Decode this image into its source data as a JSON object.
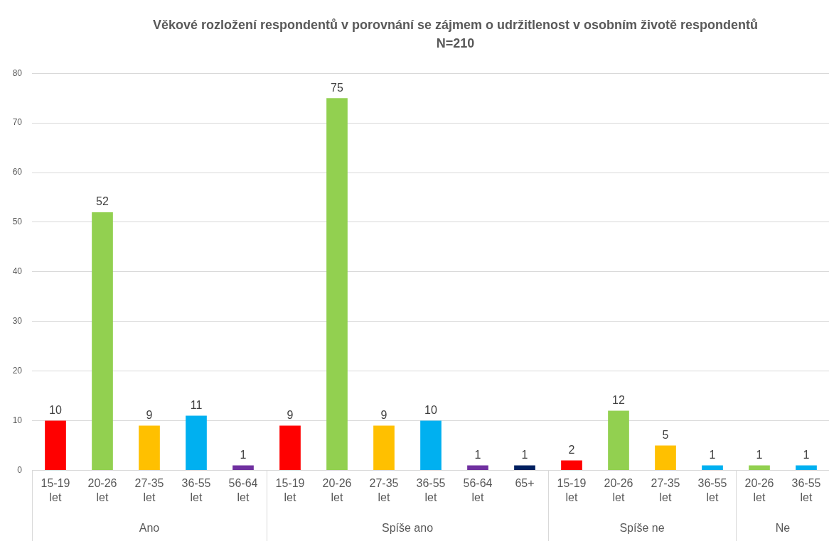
{
  "chart_data": [
    {
      "type": "bar",
      "xlabel": "Ano",
      "categories": [
        "15-19 let",
        "20-26 let",
        "27-35 let",
        "36-55 let",
        "56-64 let"
      ],
      "values": [
        10,
        52,
        9,
        11,
        1
      ],
      "colors": [
        "#ff0000",
        "#92d050",
        "#ffc000",
        "#00b0f0",
        "#7030a0"
      ],
      "ylim": [
        0,
        80
      ],
      "yticks": [
        0,
        10,
        20,
        30,
        40,
        50,
        60,
        70,
        80
      ],
      "grid": "y",
      "data_labels": true,
      "legend": false
    },
    {
      "type": "bar",
      "title": "Věkové rozložení respondentů v porovnání se zájmem o udržitlenost v osobním životě respondentů",
      "subtitle": "N=210",
      "xlabel": "Spíše ano",
      "categories": [
        "15-19 let",
        "20-26 let",
        "27-35 let",
        "36-55 let",
        "56-64 let",
        "65+"
      ],
      "values": [
        9,
        75,
        9,
        10,
        1,
        1
      ],
      "colors": [
        "#ff0000",
        "#92d050",
        "#ffc000",
        "#00b0f0",
        "#7030a0",
        "#002060"
      ],
      "ylim": [
        0,
        80
      ],
      "yticks": [
        0,
        10,
        20,
        30,
        40,
        50,
        60,
        70,
        80
      ],
      "grid": "y",
      "data_labels": true,
      "legend": false,
      "tick_labels": "x"
    },
    {
      "type": "bar",
      "xlabel": "Spíše ne",
      "categories": [
        "15-19 let",
        "20-26 let",
        "27-35 let",
        "36-55 let"
      ],
      "values": [
        2,
        12,
        5,
        1
      ],
      "colors": [
        "#ff0000",
        "#92d050",
        "#ffc000",
        "#00b0f0"
      ],
      "ylim": [
        0,
        80
      ],
      "yticks": [
        0,
        10,
        20,
        30,
        40,
        50,
        60,
        70,
        80
      ],
      "grid": "y",
      "data_labels": true,
      "legend": false,
      "tick_labels": "x"
    },
    {
      "type": "bar",
      "xlabel": "Ne",
      "categories": [
        "20-26 let",
        "36-55 let"
      ],
      "values": [
        1,
        1
      ],
      "colors": [
        "#92d050",
        "#00b0f0"
      ],
      "ylim": [
        0,
        80
      ],
      "yticks": [
        0,
        10,
        20,
        30,
        40,
        50,
        60,
        70,
        80
      ],
      "grid": "y",
      "data_labels": true,
      "legend": false,
      "tick_labels": "x"
    }
  ]
}
